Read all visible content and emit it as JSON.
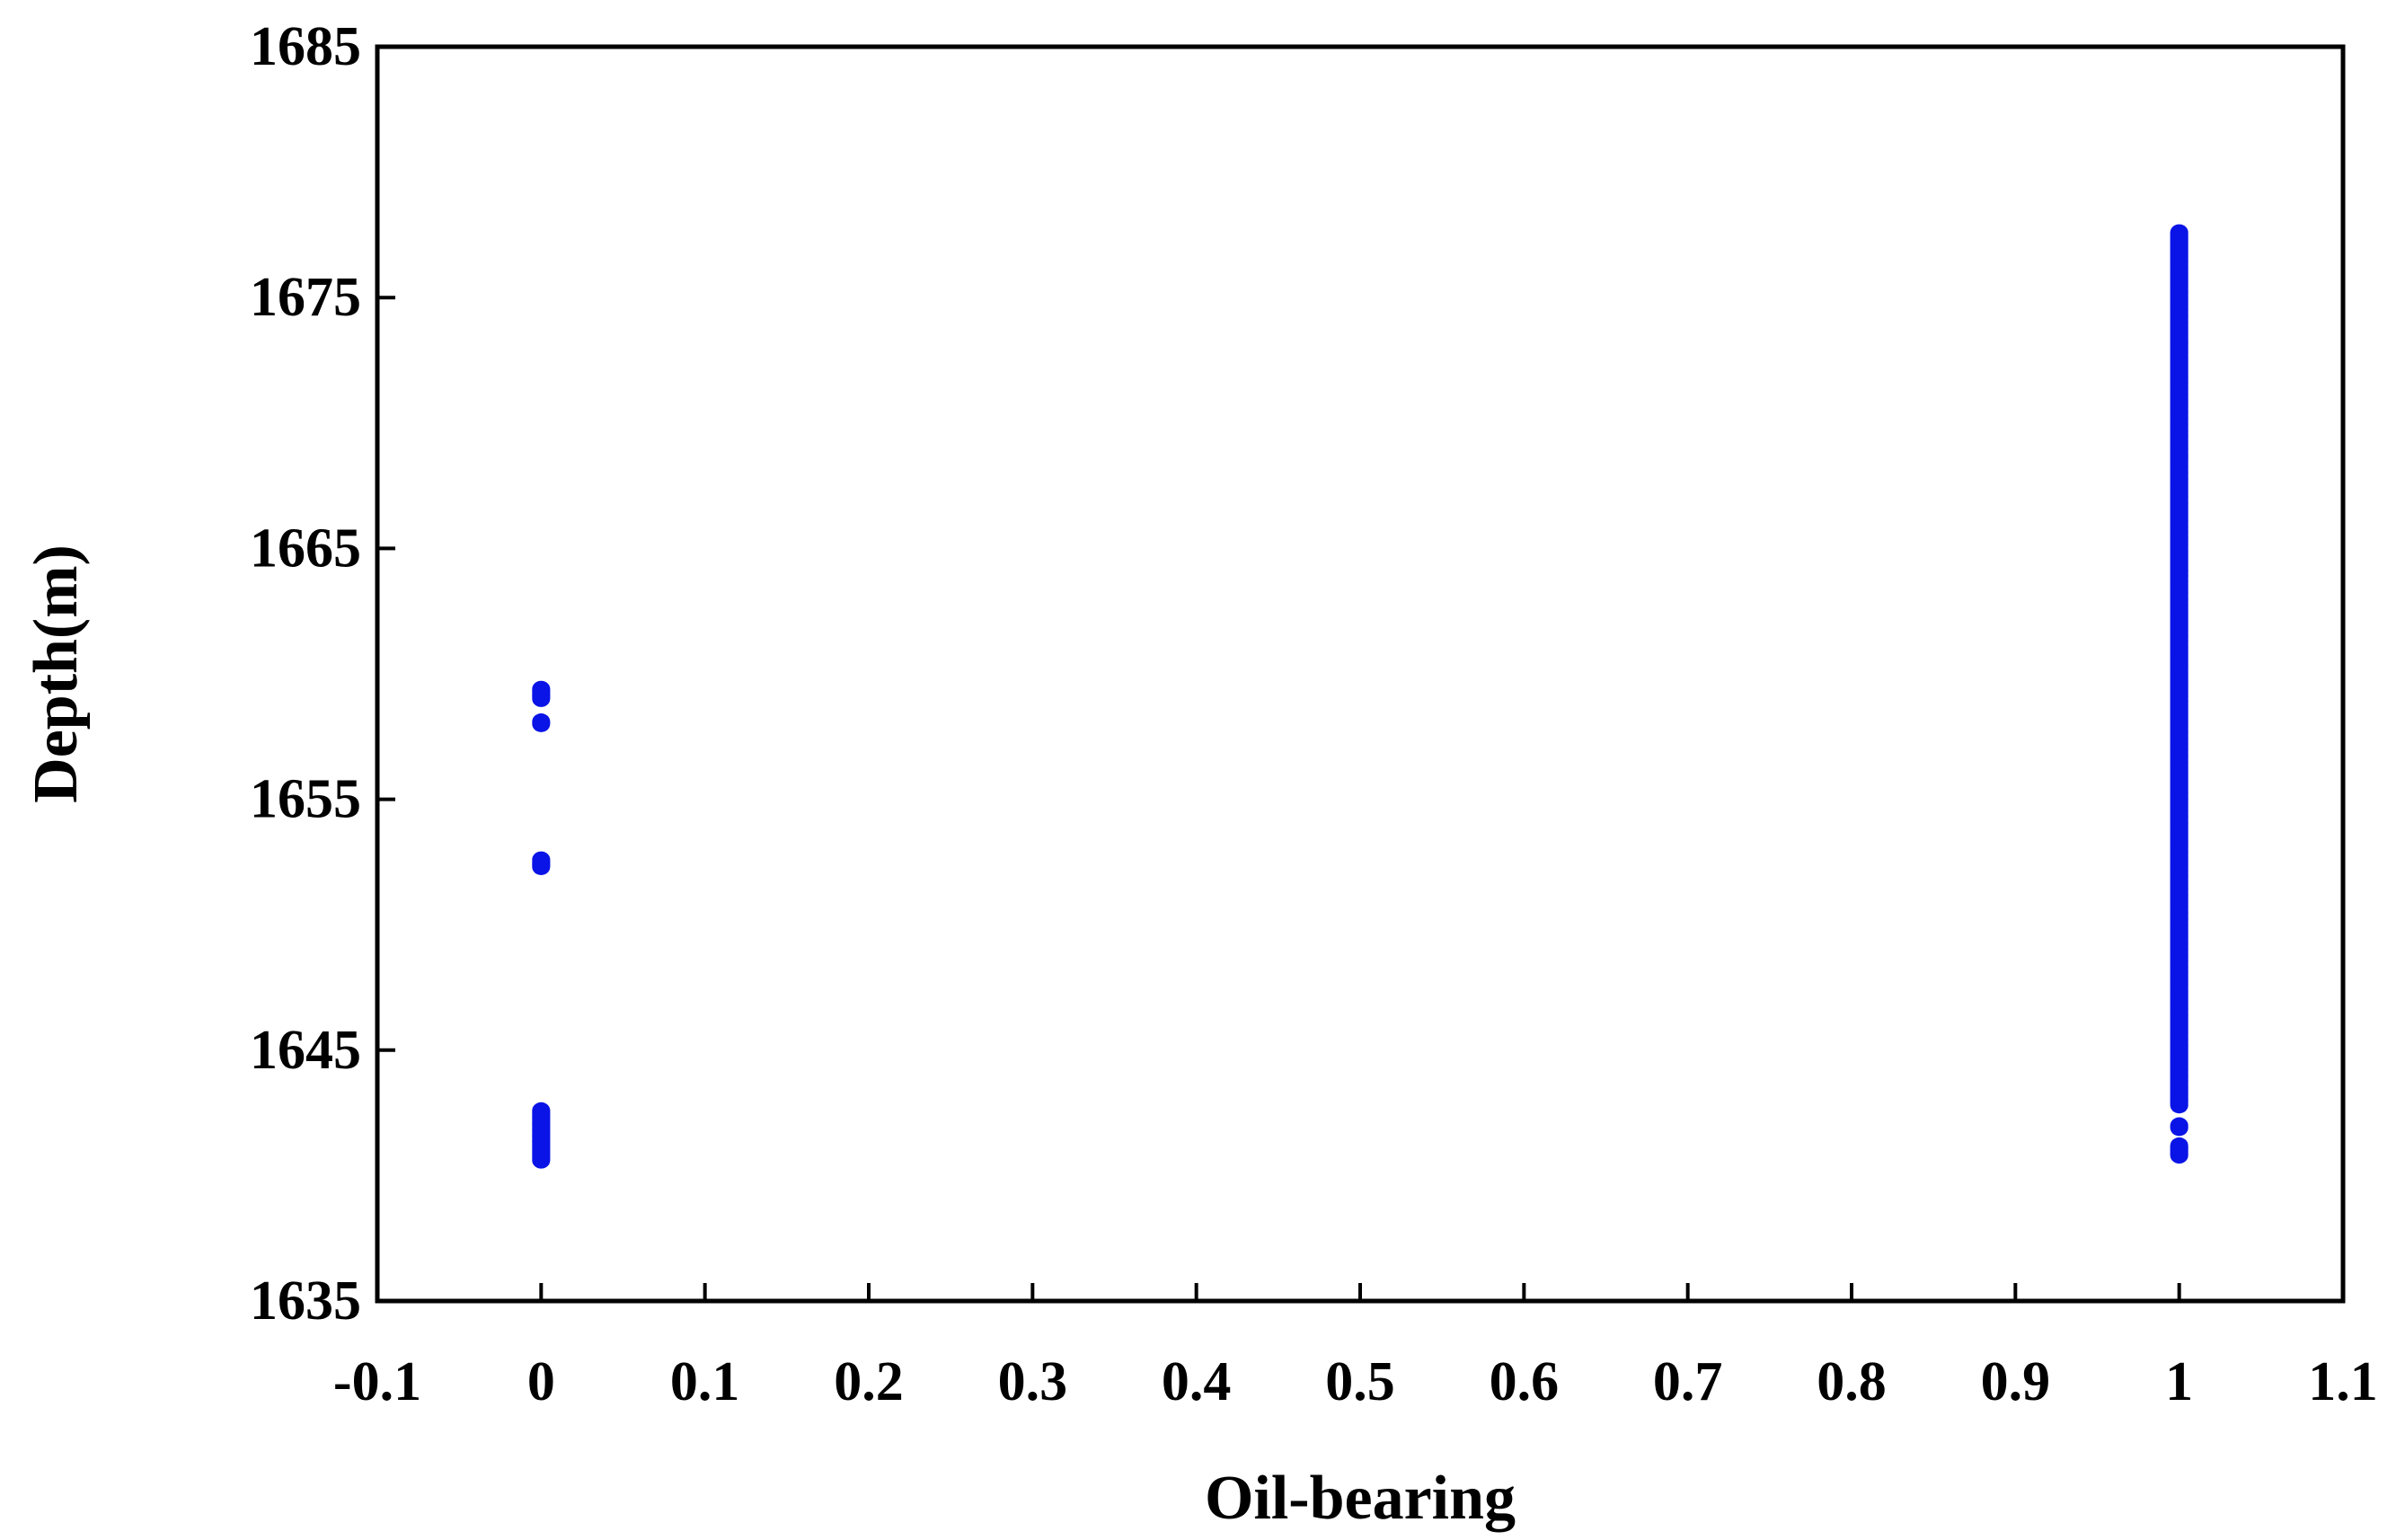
{
  "chart_data": {
    "type": "scatter",
    "title": "",
    "xlabel": "Oil-bearing",
    "ylabel": "Depth(m)",
    "xlim": [
      -0.1,
      1.1
    ],
    "ylim": [
      1635,
      1685
    ],
    "x_ticks": [
      -0.1,
      0,
      0.1,
      0.2,
      0.3,
      0.4,
      0.5,
      0.6,
      0.7,
      0.8,
      0.9,
      1,
      1.1
    ],
    "x_tick_labels": [
      "-0.1",
      "0",
      "0.1",
      "0.2",
      "0.3",
      "0.4",
      "0.5",
      "0.6",
      "0.7",
      "0.8",
      "0.9",
      "1",
      "1.1"
    ],
    "y_ticks": [
      1635,
      1645,
      1655,
      1665,
      1675,
      1685
    ],
    "y_tick_labels": [
      "1635",
      "1645",
      "1655",
      "1665",
      "1675",
      "1685"
    ],
    "grid": false,
    "marker_color": "#0a14e6",
    "series": [
      {
        "x_value": 0,
        "depth_ranges": [
          [
            1659.0,
            1659.4
          ],
          [
            1658.0,
            1658.1
          ],
          [
            1652.3,
            1652.6
          ],
          [
            1640.6,
            1642.6
          ]
        ]
      },
      {
        "x_value": 1,
        "depth_ranges": [
          [
            1642.8,
            1677.6
          ],
          [
            1641.9,
            1642.0
          ],
          [
            1640.8,
            1641.2
          ]
        ]
      }
    ]
  }
}
